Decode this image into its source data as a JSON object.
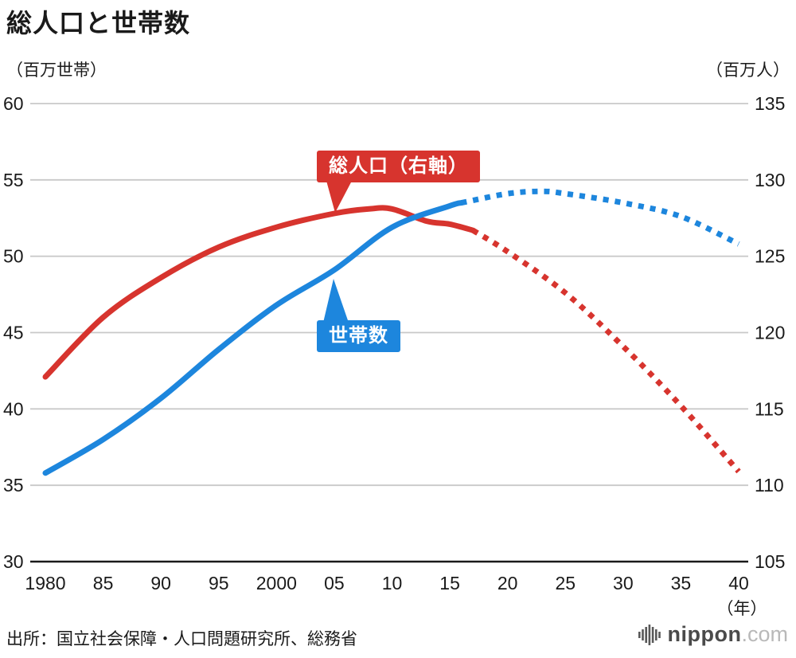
{
  "title": "総人口と世帯数",
  "axis_units": {
    "left": "（百万世帯）",
    "right": "（百万人）"
  },
  "callouts": {
    "population": "総人口（右軸）",
    "households": "世帯数"
  },
  "source": "出所：国立社会保障・人口問題研究所、総務省",
  "logo": {
    "name": "nippon",
    "suffix": ".com"
  },
  "colors": {
    "population": "#d7342e",
    "households": "#1d86dd",
    "grid": "#c9c9c9",
    "axis": "#1a1a1a",
    "text": "#1a1a1a"
  },
  "chart_data": {
    "type": "line",
    "title": "総人口と世帯数",
    "x_axis": {
      "tick_years": [
        1980,
        1985,
        1990,
        1995,
        2000,
        2005,
        2010,
        2015,
        2020,
        2025,
        2030,
        2035,
        2040
      ],
      "tick_labels": [
        "1980",
        "85",
        "90",
        "95",
        "2000",
        "05",
        "10",
        "15",
        "20",
        "25",
        "30",
        "35",
        "40"
      ],
      "unit_label": "（年）",
      "range": [
        1980,
        2040
      ]
    },
    "left_axis": {
      "unit": "（百万世帯）",
      "min": 30,
      "max": 60,
      "ticks": [
        30,
        35,
        40,
        45,
        50,
        55,
        60
      ]
    },
    "right_axis": {
      "unit": "（百万人）",
      "min": 105,
      "max": 135,
      "ticks": [
        105,
        110,
        115,
        120,
        125,
        130,
        135
      ]
    },
    "grid": "horizontal",
    "legend_position": "inline-callouts",
    "series": [
      {
        "id": "population-actual",
        "label": "総人口（右軸）",
        "axis": "right",
        "style": "solid",
        "color_key": "population",
        "x": [
          1980,
          1985,
          1990,
          1995,
          2000,
          2005,
          2008,
          2010,
          2013,
          2015,
          2017
        ],
        "values": [
          117.1,
          121.0,
          123.6,
          125.6,
          126.9,
          127.8,
          128.1,
          128.1,
          127.3,
          127.1,
          126.7
        ]
      },
      {
        "id": "population-projection",
        "axis": "right",
        "style": "dotted",
        "color_key": "population",
        "x": [
          2017,
          2020,
          2025,
          2030,
          2035,
          2040
        ],
        "values": [
          126.7,
          125.3,
          122.6,
          119.1,
          115.2,
          110.9
        ]
      },
      {
        "id": "households-actual",
        "label": "世帯数",
        "axis": "left",
        "style": "solid",
        "color_key": "households",
        "x": [
          1980,
          1985,
          1990,
          1995,
          2000,
          2005,
          2010,
          2015,
          2016
        ],
        "values": [
          35.8,
          38.0,
          40.7,
          43.9,
          46.8,
          49.1,
          51.9,
          53.3,
          53.5
        ]
      },
      {
        "id": "households-projection",
        "axis": "left",
        "style": "dotted",
        "color_key": "households",
        "x": [
          2016,
          2020,
          2023,
          2025,
          2030,
          2035,
          2040
        ],
        "values": [
          53.5,
          54.1,
          54.25,
          54.1,
          53.5,
          52.6,
          50.8
        ]
      }
    ]
  }
}
